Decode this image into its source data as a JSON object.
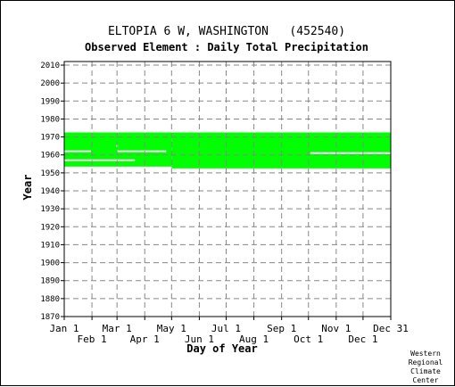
{
  "chart_data": {
    "type": "heatmap",
    "title": "ELTOPIA 6 W, WASHINGTON   (452540)",
    "subtitle": "Observed Element : Daily Total Precipitation",
    "xlabel": "Day of Year",
    "ylabel": "Year",
    "xlim": [
      1,
      366
    ],
    "ylim": [
      1870,
      2012
    ],
    "ytick_labels": [
      "2010",
      "2000",
      "1990",
      "1980",
      "1970",
      "1960",
      "1950",
      "1940",
      "1930",
      "1920",
      "1910",
      "1900",
      "1890",
      "1880",
      "1870"
    ],
    "ytick_values": [
      2010,
      2000,
      1990,
      1980,
      1970,
      1960,
      1950,
      1940,
      1930,
      1920,
      1910,
      1900,
      1890,
      1880,
      1870
    ],
    "xtick_top": [
      {
        "label": "Jan 1",
        "day": 1
      },
      {
        "label": "Mar 1",
        "day": 60
      },
      {
        "label": "May 1",
        "day": 121
      },
      {
        "label": "Jul 1",
        "day": 182
      },
      {
        "label": "Sep 1",
        "day": 244
      },
      {
        "label": "Nov 1",
        "day": 305
      },
      {
        "label": "Dec 31",
        "day": 366
      }
    ],
    "xtick_bottom": [
      {
        "label": "Feb 1",
        "day": 32
      },
      {
        "label": "Apr 1",
        "day": 91
      },
      {
        "label": "Jun 1",
        "day": 152
      },
      {
        "label": "Aug 1",
        "day": 213
      },
      {
        "label": "Oct 1",
        "day": 274
      },
      {
        "label": "Dec 1",
        "day": 335
      }
    ],
    "coverage": [
      {
        "year_start": 1953.5,
        "year_end": 1972.5,
        "day_start": 1,
        "day_end": 121
      },
      {
        "year_start": 1952.5,
        "year_end": 1972.5,
        "day_start": 121,
        "day_end": 366
      }
    ],
    "gaps": [
      {
        "year": 1962,
        "day_start": 1,
        "day_end": 31
      },
      {
        "year": 1957,
        "day_start": 1,
        "day_end": 80
      },
      {
        "year": 1965,
        "day_start": 59,
        "day_end": 61
      },
      {
        "year": 1962,
        "day_start": 60,
        "day_end": 115
      },
      {
        "year": 1961,
        "day_start": 276,
        "day_end": 366
      }
    ],
    "grid": true,
    "colors": {
      "data": "#00ff00",
      "gap": "#ffffff",
      "grid": "#888888",
      "axis": "#000000"
    }
  },
  "credit": [
    "Western",
    "Regional",
    "Climate",
    "Center"
  ]
}
